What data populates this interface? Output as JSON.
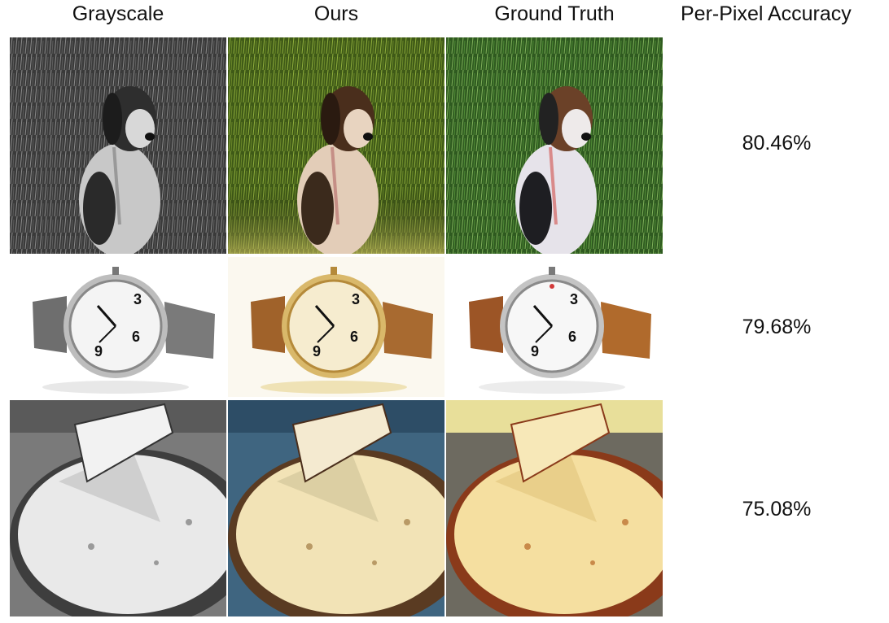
{
  "headers": {
    "grayscale": "Grayscale",
    "ours": "Ours",
    "ground_truth": "Ground Truth",
    "accuracy": "Per-Pixel Accuracy"
  },
  "rows": [
    {
      "subject": "dog",
      "accuracy": "80.46%"
    },
    {
      "subject": "watch",
      "accuracy": "79.68%"
    },
    {
      "subject": "pizza",
      "accuracy": "75.08%"
    }
  ],
  "colors": {
    "background": "#ffffff",
    "text": "#111111",
    "grass_ours": "#5e7a23",
    "grass_truth": "#3f6e24",
    "leather_ours": "#a86a30",
    "leather_truth": "#b06a2c",
    "cheese_ours": "#f2e3b6",
    "cheese_truth": "#f5dfa0"
  }
}
